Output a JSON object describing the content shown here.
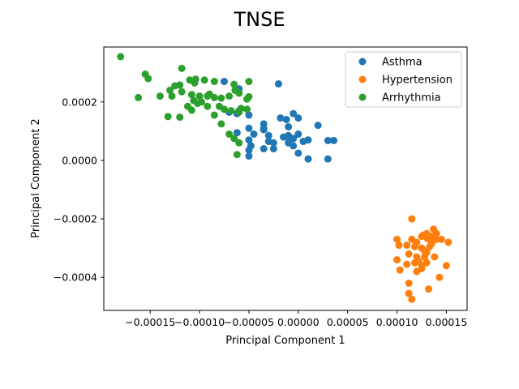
{
  "chart_data": {
    "type": "scatter",
    "title": "TNSE",
    "xlabel": "Principal Component 1",
    "ylabel": "Principal Component 2",
    "xlim": [
      -0.000197,
      0.000171
    ],
    "ylim": [
      -0.000513,
      0.000388
    ],
    "x_ticks": [
      -0.00015,
      -0.0001,
      -5e-05,
      0.0,
      5e-05,
      0.0001,
      0.00015
    ],
    "x_tick_labels": [
      "−0.00015",
      "−0.00010",
      "−0.00005",
      "0.00000",
      "0.00005",
      "0.00010",
      "0.00015"
    ],
    "y_ticks": [
      -0.0004,
      -0.0002,
      0.0,
      0.0002
    ],
    "y_tick_labels": [
      "−0.0004",
      "−0.0002",
      "0.0000",
      "0.0002"
    ],
    "grid": false,
    "legend_position": "top-right",
    "series": [
      {
        "name": "Asthma",
        "color": "#1f77b4",
        "points": [
          [
            -7.5e-05,
            0.00027
          ],
          [
            -2e-05,
            0.000262
          ],
          [
            -6e-05,
            0.000245
          ],
          [
            -6.2e-05,
            0.00016
          ],
          [
            -5e-05,
            0.000155
          ],
          [
            -5e-06,
            0.00016
          ],
          [
            -1.2e-05,
            0.00014
          ],
          [
            -1.8e-05,
            0.000145
          ],
          [
            -1e-05,
            0.000115
          ],
          [
            0.0,
            0.000145
          ],
          [
            2e-05,
            0.00012
          ],
          [
            -3.5e-05,
            0.000125
          ],
          [
            -5e-05,
            0.00011
          ],
          [
            -4.5e-05,
            9e-05
          ],
          [
            -5e-05,
            7e-05
          ],
          [
            -4.8e-05,
            5e-05
          ],
          [
            -3.5e-05,
            0.000105
          ],
          [
            -3e-05,
            8.5e-05
          ],
          [
            -3e-05,
            6.5e-05
          ],
          [
            -2.5e-05,
            6e-05
          ],
          [
            -1.5e-05,
            8e-05
          ],
          [
            -1e-05,
            8.5e-05
          ],
          [
            -5e-06,
            7.5e-05
          ],
          [
            0.0,
            9e-05
          ],
          [
            5e-06,
            6.5e-05
          ],
          [
            1e-05,
            7e-05
          ],
          [
            -1e-05,
            6e-05
          ],
          [
            -5e-06,
            5e-05
          ],
          [
            -2.5e-05,
            4e-05
          ],
          [
            -3.5e-05,
            4e-05
          ],
          [
            -5e-05,
            3.5e-05
          ],
          [
            -5e-05,
            1.5e-05
          ],
          [
            0.0,
            2.5e-05
          ],
          [
            1e-05,
            5e-06
          ],
          [
            3e-05,
            5e-06
          ],
          [
            3e-05,
            6.8e-05
          ],
          [
            3.6e-05,
            6.8e-05
          ],
          [
            -6.2e-05,
            9.5e-05
          ],
          [
            -3.5e-05,
            0.00011
          ],
          [
            -6e-05,
            0.00017
          ],
          [
            -7e-05,
            0.000165
          ],
          [
            -1e-05,
            8e-05
          ]
        ]
      },
      {
        "name": "Hypertension",
        "color": "#ff7f0e",
        "points": [
          [
            0.000115,
            -0.0002
          ],
          [
            0.0001,
            -0.00027
          ],
          [
            0.000102,
            -0.00029
          ],
          [
            0.000115,
            -0.00027
          ],
          [
            0.00012,
            -0.00028
          ],
          [
            0.000125,
            -0.00026
          ],
          [
            0.00013,
            -0.00025
          ],
          [
            0.000135,
            -0.00026
          ],
          [
            0.000137,
            -0.000235
          ],
          [
            0.00014,
            -0.00025
          ],
          [
            0.000145,
            -0.00027
          ],
          [
            0.000152,
            -0.00028
          ],
          [
            0.00011,
            -0.00029
          ],
          [
            0.000118,
            -0.000295
          ],
          [
            0.000125,
            -0.0003
          ],
          [
            0.000128,
            -0.00031
          ],
          [
            0.000133,
            -0.000295
          ],
          [
            0.000135,
            -0.000285
          ],
          [
            0.000112,
            -0.00032
          ],
          [
            0.00012,
            -0.00033
          ],
          [
            0.000122,
            -0.000345
          ],
          [
            0.000128,
            -0.00033
          ],
          [
            0.00013,
            -0.000315
          ],
          [
            0.0001,
            -0.00034
          ],
          [
            0.000103,
            -0.000375
          ],
          [
            0.00011,
            -0.000355
          ],
          [
            0.000118,
            -0.00035
          ],
          [
            0.000125,
            -0.00036
          ],
          [
            0.00013,
            -0.00035
          ],
          [
            0.000138,
            -0.00033
          ],
          [
            0.00015,
            -0.00036
          ],
          [
            0.00012,
            -0.00038
          ],
          [
            0.000125,
            -0.00037
          ],
          [
            0.000143,
            -0.0004
          ],
          [
            0.000112,
            -0.00042
          ],
          [
            0.000132,
            -0.00044
          ],
          [
            0.000112,
            -0.000455
          ],
          [
            0.000115,
            -0.000475
          ],
          [
            0.000135,
            -0.000275
          ],
          [
            0.000127,
            -0.000255
          ],
          [
            0.000131,
            -0.000268
          ],
          [
            0.00014,
            -0.00027
          ]
        ]
      },
      {
        "name": "Arrhythmia",
        "color": "#2ca02c",
        "points": [
          [
            -0.00018,
            0.000355
          ],
          [
            -0.000155,
            0.000295
          ],
          [
            -0.000152,
            0.00028
          ],
          [
            -0.000118,
            0.000315
          ],
          [
            -0.00011,
            0.000275
          ],
          [
            -0.000105,
            0.000265
          ],
          [
            -0.000104,
            0.000278
          ],
          [
            -9.5e-05,
            0.000275
          ],
          [
            -8.5e-05,
            0.00027
          ],
          [
            -6.5e-05,
            0.00026
          ],
          [
            -5e-05,
            0.00027
          ],
          [
            -0.000162,
            0.000215
          ],
          [
            -0.00014,
            0.00022
          ],
          [
            -0.00013,
            0.00024
          ],
          [
            -0.000125,
            0.000255
          ],
          [
            -0.00012,
            0.000258
          ],
          [
            -0.000128,
            0.00022
          ],
          [
            -0.000118,
            0.000235
          ],
          [
            -0.000108,
            0.000225
          ],
          [
            -0.000106,
            0.000205
          ],
          [
            -0.0001,
            0.00022
          ],
          [
            -9.2e-05,
            0.00022
          ],
          [
            -9e-05,
            0.000227
          ],
          [
            -8.5e-05,
            0.000215
          ],
          [
            -7.8e-05,
            0.000213
          ],
          [
            -7e-05,
            0.00022
          ],
          [
            -6.4e-05,
            0.00024
          ],
          [
            -6e-05,
            0.00023
          ],
          [
            -5.2e-05,
            0.00021
          ],
          [
            -5e-05,
            0.000218
          ],
          [
            -0.000112,
            0.000185
          ],
          [
            -0.000108,
            0.000172
          ],
          [
            -0.000102,
            0.000195
          ],
          [
            -9.8e-05,
            0.0002
          ],
          [
            -9.2e-05,
            0.000185
          ],
          [
            -8e-05,
            0.000185
          ],
          [
            -7.5e-05,
            0.000175
          ],
          [
            -6.8e-05,
            0.00017
          ],
          [
            -6e-05,
            0.000165
          ],
          [
            -5.2e-05,
            0.000175
          ],
          [
            -5.8e-05,
            0.000178
          ],
          [
            -0.000132,
            0.00015
          ],
          [
            -0.00012,
            0.000148
          ],
          [
            -8.5e-05,
            0.000155
          ],
          [
            -7.8e-05,
            0.000125
          ],
          [
            -7e-05,
            9e-05
          ],
          [
            -6.5e-05,
            7.5e-05
          ],
          [
            -6e-05,
            6e-05
          ],
          [
            -6.2e-05,
            2e-05
          ]
        ]
      }
    ]
  }
}
